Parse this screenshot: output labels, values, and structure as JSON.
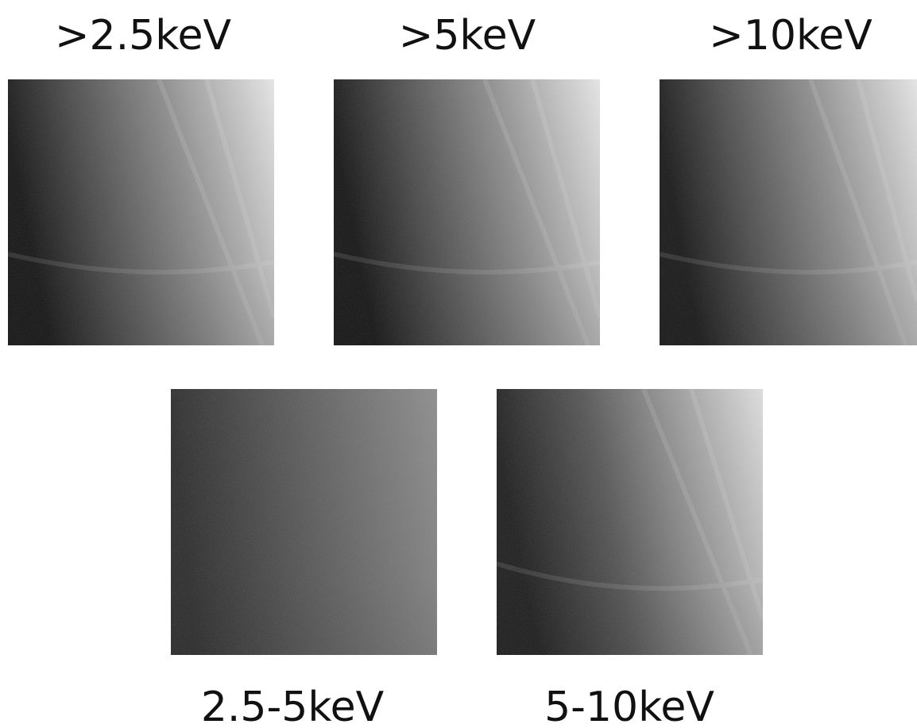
{
  "panels": [
    {
      "label": ">2.5keV"
    },
    {
      "label": ">5keV"
    },
    {
      "label": ">10keV"
    },
    {
      "label": "2.5-5keV"
    },
    {
      "label": "5-10keV"
    }
  ]
}
